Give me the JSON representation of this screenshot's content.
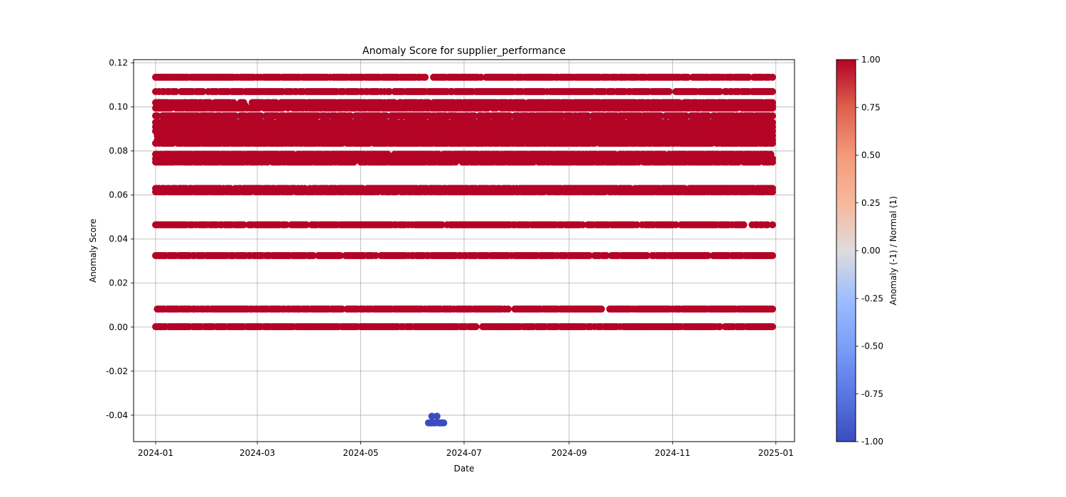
{
  "chart_data": {
    "type": "scatter",
    "title": "Anomaly Score for supplier_performance",
    "xlabel": "Date",
    "ylabel": "Anomaly Score",
    "x_range": [
      "2023-12-19",
      "2025-01-12"
    ],
    "ylim": [
      -0.052,
      0.1215
    ],
    "x_ticks": [
      "2024-01",
      "2024-03",
      "2024-05",
      "2024-07",
      "2024-09",
      "2024-11",
      "2025-01"
    ],
    "x_tick_dates": [
      "2024-01-01",
      "2024-03-01",
      "2024-05-01",
      "2024-07-01",
      "2024-09-01",
      "2024-11-01",
      "2025-01-01"
    ],
    "y_ticks": [
      -0.04,
      -0.02,
      0.0,
      0.02,
      0.04,
      0.06,
      0.08,
      0.1,
      0.12
    ],
    "y_tick_labels": [
      "-0.04",
      "-0.02",
      "0.00",
      "0.02",
      "0.04",
      "0.06",
      "0.08",
      "0.10",
      "0.12"
    ],
    "grid": true,
    "color_scale": "coolwarm",
    "colorbar": {
      "label": "Anomaly (-1) / Normal (1)",
      "range": [
        -1,
        1
      ],
      "ticks": [
        1.0,
        0.75,
        0.5,
        0.25,
        0.0,
        -0.25,
        -0.5,
        -0.75,
        -1.0
      ],
      "tick_labels": [
        "1.00",
        "0.75",
        "0.50",
        "0.25",
        "0.00",
        "-0.25",
        "-0.50",
        "-0.75",
        "-1.00"
      ]
    },
    "normal_color": "#b40426",
    "anomaly_color": "#3b4cc0",
    "normal_score_levels": [
      0.1135,
      0.107,
      0.102,
      0.1005,
      0.0995,
      0.096,
      0.093,
      0.091,
      0.089,
      0.087,
      0.085,
      0.0835,
      0.0785,
      0.0765,
      0.075,
      0.063,
      0.0615,
      0.0465,
      0.0325,
      0.0082,
      0.0002
    ],
    "normal_date_range": [
      "2024-01-01",
      "2024-12-30"
    ],
    "anomaly_points": [
      {
        "date": "2024-06-10",
        "score": -0.0435
      },
      {
        "date": "2024-06-11",
        "score": -0.0435
      },
      {
        "date": "2024-06-12",
        "score": -0.0405
      },
      {
        "date": "2024-06-12",
        "score": -0.0435
      },
      {
        "date": "2024-06-13",
        "score": -0.0435
      },
      {
        "date": "2024-06-14",
        "score": -0.0435
      },
      {
        "date": "2024-06-15",
        "score": -0.0405
      },
      {
        "date": "2024-06-16",
        "score": -0.0435
      },
      {
        "date": "2024-06-17",
        "score": -0.0435
      },
      {
        "date": "2024-06-18",
        "score": -0.0435
      },
      {
        "date": "2024-06-19",
        "score": -0.0435
      }
    ]
  }
}
